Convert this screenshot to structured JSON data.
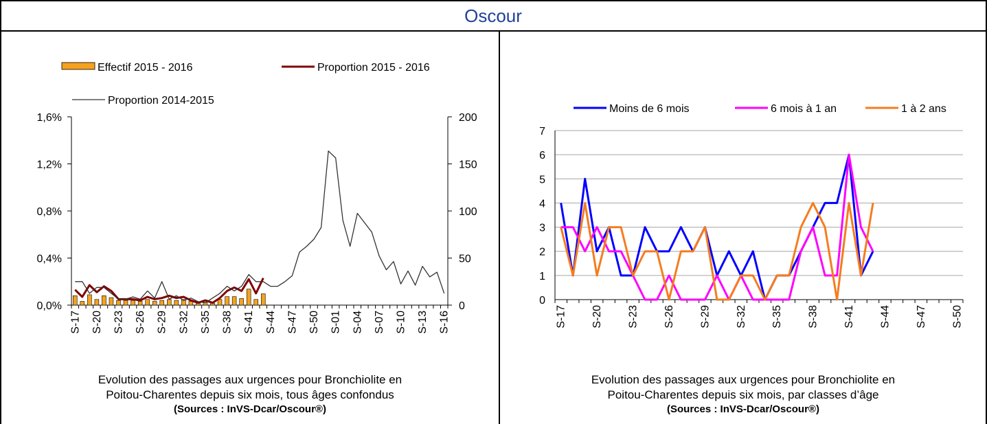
{
  "title": "Oscour",
  "chart_data": [
    {
      "type": "combo",
      "categories": [
        "S-17",
        null,
        null,
        "S-20",
        null,
        null,
        "S-23",
        null,
        null,
        "S-26",
        null,
        null,
        "S-29",
        null,
        null,
        "S-32",
        null,
        null,
        "S-35",
        null,
        null,
        "S-38",
        null,
        null,
        "S-41",
        null,
        null,
        "S-44",
        null,
        null,
        "S-47",
        null,
        null,
        "S-50",
        null,
        null,
        "S-01",
        null,
        null,
        "S-04",
        null,
        null,
        "S-07",
        null,
        null,
        "S-10",
        null,
        null,
        "S-13",
        null,
        null,
        "S-16"
      ],
      "series": [
        {
          "name": "Effectif 2015 - 2016",
          "kind": "bar",
          "axis": "y2",
          "color": "#f5a21e",
          "values": [
            10,
            4,
            11,
            6,
            10,
            8,
            5,
            5,
            5,
            4,
            6,
            4,
            5,
            6,
            5,
            6,
            4,
            2,
            3,
            2,
            6,
            9,
            9,
            7,
            17,
            6,
            12,
            null,
            null,
            null,
            null,
            null,
            null,
            null,
            null,
            null,
            null,
            null,
            null,
            null,
            null,
            null,
            null,
            null,
            null,
            null,
            null,
            null,
            null,
            null,
            null,
            null
          ]
        },
        {
          "name": "Proportion 2015 - 2016",
          "kind": "line",
          "color": "#7f0000",
          "values": [
            0.13,
            0.07,
            0.17,
            0.11,
            0.16,
            0.12,
            0.05,
            0.05,
            0.05,
            0.04,
            0.07,
            0.05,
            0.06,
            0.08,
            0.06,
            0.07,
            0.04,
            0.02,
            0.04,
            0.02,
            0.06,
            0.12,
            0.15,
            0.12,
            0.22,
            0.1,
            0.23,
            null,
            null,
            null,
            null,
            null,
            null,
            null,
            null,
            null,
            null,
            null,
            null,
            null,
            null,
            null,
            null,
            null,
            null,
            null,
            null,
            null,
            null,
            null,
            null,
            null
          ]
        },
        {
          "name": "Proportion 2014-2015",
          "kind": "line",
          "color": "#333333",
          "values": [
            0.2,
            0.2,
            0.1,
            0.15,
            0.15,
            0.1,
            0.05,
            0.05,
            0.07,
            0.05,
            0.12,
            0.06,
            0.2,
            0.05,
            0.08,
            0.04,
            0.06,
            0.03,
            0.02,
            0.06,
            0.1,
            0.16,
            0.12,
            0.16,
            0.26,
            0.2,
            0.2,
            0.16,
            0.16,
            0.2,
            0.25,
            0.45,
            0.5,
            0.56,
            0.66,
            1.31,
            1.25,
            0.72,
            0.5,
            0.78,
            0.7,
            0.62,
            0.42,
            0.3,
            0.37,
            0.18,
            0.29,
            0.17,
            0.33,
            0.24,
            0.28,
            0.1
          ]
        }
      ],
      "ylim": [
        0,
        1.6
      ],
      "yticks": [
        {
          "value": 0,
          "label": "0,0%"
        },
        {
          "value": 0.4,
          "label": "0,4%"
        },
        {
          "value": 0.8,
          "label": "0,8%"
        },
        {
          "value": 1.2,
          "label": "1,2%"
        },
        {
          "value": 1.6,
          "label": "1,6%"
        }
      ],
      "y2lim": [
        0,
        200
      ],
      "y2ticks": [
        0,
        50,
        100,
        150,
        200
      ],
      "caption": "Evolution des passages aux urgences pour Bronchiolite en Poitou-Charentes depuis six mois, tous âges confondus",
      "source": "(Sources : InVS-Dcar/Oscour®)"
    },
    {
      "type": "line",
      "categories": [
        "S-17",
        null,
        null,
        "S-20",
        null,
        null,
        "S-23",
        null,
        null,
        "S-26",
        null,
        null,
        "S-29",
        null,
        null,
        "S-32",
        null,
        null,
        "S-35",
        null,
        null,
        "S-38",
        null,
        null,
        "S-41",
        null,
        null,
        "S-44",
        null,
        null,
        "S-47",
        null,
        null,
        "S-50"
      ],
      "series": [
        {
          "name": "Moins de 6 mois",
          "color": "#0000ff",
          "values": [
            4,
            1,
            5,
            2,
            3,
            1,
            1,
            3,
            2,
            2,
            3,
            2,
            3,
            1,
            2,
            1,
            2,
            0,
            1,
            1,
            2,
            3,
            4,
            4,
            6,
            1,
            2,
            null,
            null,
            null,
            null,
            null,
            null,
            null
          ]
        },
        {
          "name": "6 mois à 1 an",
          "color": "#ff00ff",
          "values": [
            3,
            3,
            2,
            3,
            2,
            2,
            1,
            0,
            0,
            1,
            0,
            0,
            0,
            1,
            0,
            1,
            0,
            0,
            0,
            0,
            2,
            3,
            1,
            1,
            6,
            3,
            2,
            null,
            null,
            null,
            null,
            null,
            null,
            null
          ]
        },
        {
          "name": "1 à 2 ans",
          "color": "#f57c1f",
          "values": [
            3,
            1,
            4,
            1,
            3,
            3,
            1,
            2,
            2,
            0,
            2,
            2,
            3,
            0,
            0,
            1,
            1,
            0,
            1,
            1,
            3,
            4,
            3,
            0,
            4,
            1,
            4,
            null,
            null,
            null,
            null,
            null,
            null,
            null
          ]
        }
      ],
      "ylim": [
        0,
        7
      ],
      "yticks": [
        0,
        1,
        2,
        3,
        4,
        5,
        6,
        7
      ],
      "grid": true,
      "caption": "Evolution des passages aux urgences pour Bronchiolite en Poitou-Charentes depuis six mois, par classes d’âge",
      "source": "(Sources : InVS-Dcar/Oscour®)"
    }
  ]
}
